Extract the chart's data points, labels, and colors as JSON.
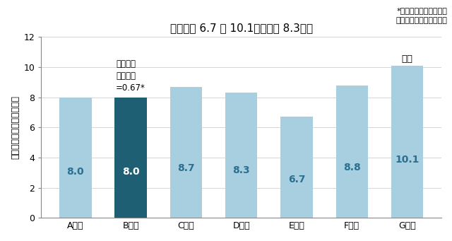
{
  "categories": [
    "A市町",
    "B市町",
    "C市町",
    "D市町",
    "E市町",
    "F市町",
    "G市町"
  ],
  "values": [
    8.0,
    8.0,
    8.7,
    8.3,
    6.7,
    8.8,
    10.1
  ],
  "bar_colors": [
    "#a8cfe0",
    "#1e5f74",
    "#a8cfe0",
    "#a8cfe0",
    "#a8cfe0",
    "#a8cfe0",
    "#a8cfe0"
  ],
  "title": "市町間で 6.7 ～ 10.1％（平均 8.3％）",
  "ylabel": "過去１年間の転倒率（％）",
  "ylim": [
    0,
    12
  ],
  "yticks": [
    0,
    2,
    4,
    6,
    8,
    10,
    12
  ],
  "annotation_b": "転倒発生\nオッズ比\n=0.67*",
  "annotation_g": "基準",
  "footnote": "*統計学的に意味のある\n　違いが認められたもの",
  "value_fontsize": 10,
  "title_fontsize": 11,
  "ylabel_fontsize": 9,
  "tick_fontsize": 9,
  "annot_fontsize": 8.5,
  "footnote_fontsize": 8,
  "background_color": "#ffffff"
}
